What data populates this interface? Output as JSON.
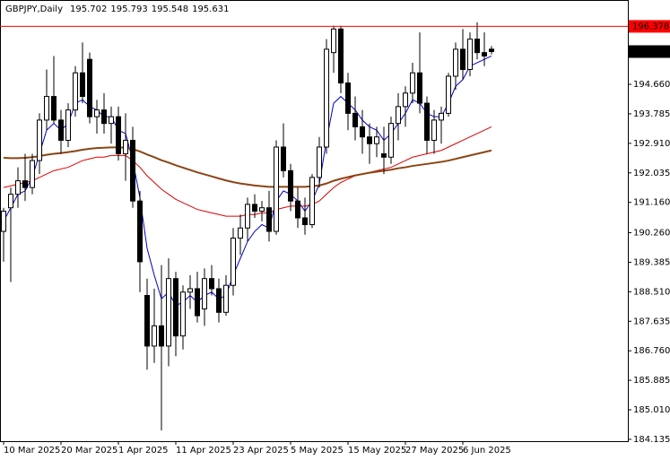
{
  "chart_data": {
    "type": "candlestick",
    "title": "GBPJPY,Daily",
    "categories": [
      "10 Mar 2025",
      null,
      null,
      null,
      null,
      null,
      null,
      null,
      "20 Mar 2025",
      null,
      null,
      null,
      null,
      null,
      null,
      null,
      "1 Apr 2025",
      null,
      null,
      null,
      null,
      null,
      null,
      null,
      "11 Apr 2025",
      null,
      null,
      null,
      null,
      null,
      null,
      null,
      "23 Apr 2025",
      null,
      null,
      null,
      null,
      null,
      null,
      null,
      "5 May 2025",
      null,
      null,
      null,
      null,
      null,
      null,
      null,
      "15 May 2025",
      null,
      null,
      null,
      null,
      null,
      null,
      null,
      "27 May 2025",
      null,
      null,
      null,
      null,
      null,
      null,
      null,
      "6 Jun 2025",
      null,
      null,
      null,
      null
    ],
    "open": [
      190.3,
      191.0,
      191.4,
      191.8,
      191.6,
      192.4,
      193.6,
      194.3,
      193.6,
      193.0,
      193.9,
      195.0,
      195.4,
      193.7,
      193.9,
      193.5,
      193.7,
      192.6,
      193.0,
      191.2,
      188.4,
      186.9,
      187.5,
      186.9,
      188.9,
      187.2,
      188.5,
      188.6,
      188.0,
      188.9,
      188.6,
      187.9,
      188.7,
      190.1,
      190.4,
      191.1,
      190.9,
      191.0,
      190.3,
      192.8,
      192.1,
      191.2,
      190.7,
      190.5,
      191.9,
      192.8,
      195.6,
      196.3,
      194.7,
      193.8,
      193.4,
      193.1,
      192.9,
      192.6,
      192.5,
      193.5,
      194.0,
      194.4,
      195.0,
      194.1,
      193.0,
      193.6,
      193.8,
      194.9,
      195.7,
      195.1,
      196.0,
      195.6,
      195.702
    ],
    "high": [
      191.0,
      191.6,
      192.2,
      192.6,
      192.6,
      193.8,
      195.1,
      195.5,
      193.9,
      194.1,
      195.2,
      195.9,
      195.6,
      194.2,
      194.4,
      194.0,
      194.0,
      193.8,
      193.4,
      191.5,
      188.9,
      188.6,
      189.3,
      189.5,
      189.1,
      188.7,
      189.0,
      189.1,
      189.2,
      189.3,
      188.9,
      189.0,
      190.4,
      190.8,
      191.3,
      191.4,
      191.2,
      191.5,
      193.0,
      193.5,
      192.3,
      191.6,
      191.3,
      192.0,
      193.1,
      196.0,
      196.4,
      196.4,
      195.0,
      194.3,
      193.9,
      193.5,
      193.4,
      193.4,
      193.7,
      194.4,
      194.6,
      195.3,
      196.2,
      194.3,
      193.9,
      194.0,
      195.0,
      195.9,
      196.3,
      196.2,
      196.5,
      196.2,
      195.793
    ],
    "low": [
      189.4,
      188.8,
      191.0,
      191.2,
      191.4,
      192.0,
      193.3,
      193.5,
      192.6,
      192.8,
      193.7,
      194.1,
      193.5,
      193.2,
      193.2,
      192.9,
      192.4,
      191.8,
      191.0,
      188.5,
      186.2,
      186.4,
      184.4,
      186.3,
      186.6,
      186.8,
      188.0,
      187.6,
      187.5,
      188.4,
      187.6,
      187.8,
      188.4,
      189.6,
      190.0,
      190.7,
      190.6,
      190.0,
      190.2,
      191.9,
      190.9,
      190.4,
      190.2,
      190.4,
      191.6,
      192.6,
      195.0,
      194.4,
      193.3,
      193.0,
      192.6,
      192.3,
      192.5,
      192.0,
      192.3,
      193.0,
      193.4,
      194.1,
      193.8,
      192.6,
      192.6,
      192.9,
      193.7,
      194.5,
      194.8,
      194.9,
      195.4,
      195.2,
      195.548
    ],
    "close": [
      190.9,
      191.4,
      191.8,
      191.6,
      192.4,
      193.6,
      194.3,
      193.6,
      193.0,
      193.9,
      195.0,
      194.3,
      193.7,
      193.9,
      193.5,
      193.7,
      192.6,
      193.0,
      191.2,
      189.4,
      186.9,
      187.5,
      186.9,
      188.9,
      187.2,
      188.5,
      188.6,
      187.8,
      188.9,
      188.6,
      187.9,
      188.7,
      190.1,
      190.4,
      191.1,
      190.9,
      191.0,
      190.3,
      192.8,
      192.1,
      191.2,
      190.7,
      190.5,
      191.9,
      192.8,
      195.7,
      196.3,
      194.7,
      193.8,
      193.4,
      193.1,
      192.9,
      193.1,
      192.5,
      193.5,
      194.0,
      194.4,
      195.0,
      194.1,
      193.0,
      193.6,
      193.8,
      194.9,
      195.7,
      195.1,
      196.0,
      195.6,
      195.5,
      195.631
    ],
    "lines": [
      {
        "color": "#0000cc",
        "values": [
          190.6,
          191.0,
          191.4,
          191.5,
          191.9,
          192.6,
          193.3,
          193.5,
          193.3,
          193.5,
          194.1,
          194.2,
          194.0,
          193.9,
          193.7,
          193.7,
          193.3,
          193.2,
          192.4,
          191.3,
          189.8,
          189.0,
          188.3,
          188.5,
          188.1,
          188.2,
          188.4,
          188.2,
          188.4,
          188.5,
          188.3,
          188.4,
          189.0,
          189.5,
          190.0,
          190.3,
          190.5,
          190.4,
          191.2,
          191.5,
          191.4,
          191.2,
          190.9,
          191.2,
          191.7,
          193.0,
          194.1,
          194.3,
          194.1,
          193.9,
          193.6,
          193.4,
          193.3,
          193.0,
          193.2,
          193.5,
          193.8,
          194.2,
          194.1,
          193.8,
          193.7,
          193.7,
          194.1,
          194.6,
          194.8,
          195.2,
          195.3,
          195.4,
          195.5
        ]
      },
      {
        "color": "#dd0000",
        "values": [
          191.6,
          191.65,
          191.7,
          191.75,
          191.8,
          191.9,
          192.0,
          192.1,
          192.15,
          192.2,
          192.3,
          192.4,
          192.45,
          192.5,
          192.5,
          192.55,
          192.55,
          192.55,
          192.4,
          192.2,
          191.95,
          191.75,
          191.55,
          191.4,
          191.25,
          191.15,
          191.05,
          190.95,
          190.9,
          190.85,
          190.8,
          190.75,
          190.75,
          190.75,
          190.8,
          190.8,
          190.85,
          190.85,
          190.95,
          191.0,
          191.05,
          191.05,
          191.05,
          191.1,
          191.2,
          191.4,
          191.6,
          191.75,
          191.85,
          191.95,
          192.0,
          192.05,
          192.1,
          192.15,
          192.2,
          192.3,
          192.4,
          192.5,
          192.55,
          192.6,
          192.65,
          192.7,
          192.8,
          192.9,
          193.0,
          193.1,
          193.2,
          193.3,
          193.4
        ]
      },
      {
        "color": "#8b4513",
        "values": [
          192.48,
          192.47,
          192.47,
          192.48,
          192.5,
          192.53,
          192.57,
          192.6,
          192.62,
          192.65,
          192.68,
          192.72,
          192.75,
          192.77,
          192.78,
          192.79,
          192.79,
          192.78,
          192.74,
          192.67,
          192.58,
          192.5,
          192.41,
          192.34,
          192.26,
          192.19,
          192.12,
          192.05,
          191.99,
          191.93,
          191.87,
          191.81,
          191.76,
          191.72,
          191.69,
          191.66,
          191.64,
          191.62,
          191.62,
          191.62,
          191.62,
          191.62,
          191.62,
          191.64,
          191.66,
          191.72,
          191.8,
          191.86,
          191.91,
          191.96,
          192.0,
          192.04,
          192.07,
          192.1,
          192.13,
          192.17,
          192.2,
          192.24,
          192.27,
          192.3,
          192.33,
          192.36,
          192.4,
          192.45,
          192.5,
          192.55,
          192.6,
          192.65,
          192.7
        ]
      }
    ],
    "hline": {
      "value": 196.378,
      "color": "#ff0000"
    },
    "ylim": [
      184.08,
      197.16
    ],
    "yticks": [
      {
        "value": 194.66,
        "label": "194.660"
      },
      193.785,
      {
        "value": 192.91,
        "label": "192.910"
      },
      192.035,
      {
        "value": 191.16,
        "label": "191.160"
      },
      {
        "value": 190.26,
        "label": "190.260"
      },
      189.385,
      {
        "value": 188.51,
        "label": "188.510"
      },
      187.635,
      {
        "value": 186.76,
        "label": "186.760"
      },
      185.885,
      {
        "value": 185.01,
        "label": "185.010"
      },
      184.135
    ]
  }
}
